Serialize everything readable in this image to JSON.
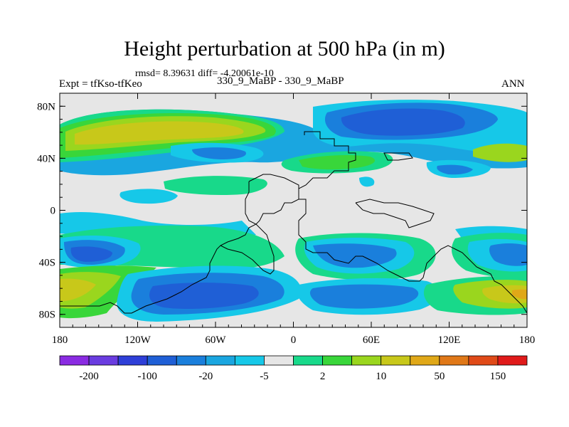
{
  "chart_data": {
    "type": "contour-map",
    "title": "Height perturbation at 500 hPa (in m)",
    "subtitle_stats": "rmsd= 8.39631 diff= -4.20061e-10",
    "left_label": "Expt = tfKso-tfKeo",
    "center_label": "330_9_MaBP - 330_9_MaBP",
    "right_label": "ANN",
    "x_ticks": [
      "180",
      "120W",
      "60W",
      "0",
      "60E",
      "120E",
      "180"
    ],
    "y_ticks": [
      "80N",
      "40N",
      "0",
      "40S",
      "80S"
    ],
    "xlim": [
      -180,
      180
    ],
    "ylim": [
      -90,
      90
    ],
    "colorbar": {
      "levels": [
        "-200",
        "-100",
        "-20",
        "-5",
        "2",
        "10",
        "50",
        "150"
      ],
      "colors": [
        "#8a2be2",
        "#6a3ce0",
        "#2e3fd8",
        "#1f5fd6",
        "#1a7fdc",
        "#1aa6e0",
        "#16c8e8",
        "#e6e6e6",
        "#18d98a",
        "#39d63a",
        "#9ad61e",
        "#c8c81a",
        "#e0a818",
        "#e07818",
        "#e04a18",
        "#e01a1a"
      ]
    },
    "approx_regions": [
      {
        "desc": "positive band 60-80N Pacific",
        "lon": [
          -170,
          -110
        ],
        "lat": [
          55,
          85
        ],
        "value": 40
      },
      {
        "desc": "strong negative Arctic Asia",
        "lon": [
          40,
          130
        ],
        "lat": [
          50,
          85
        ],
        "value": -30
      },
      {
        "desc": "negative band 40S Pacific",
        "lon": [
          -170,
          -130
        ],
        "lat": [
          -50,
          -35
        ],
        "value": -40
      },
      {
        "desc": "negative Southern Ocean",
        "lon": [
          -110,
          0
        ],
        "lat": [
          -85,
          -50
        ],
        "value": -30
      },
      {
        "desc": "positive 70S Pacific",
        "lon": [
          -180,
          -140
        ],
        "lat": [
          -80,
          -60
        ],
        "value": 30
      },
      {
        "desc": "positive 70S far east",
        "lon": [
          130,
          180
        ],
        "lat": [
          -80,
          -60
        ],
        "value": 30
      }
    ]
  }
}
